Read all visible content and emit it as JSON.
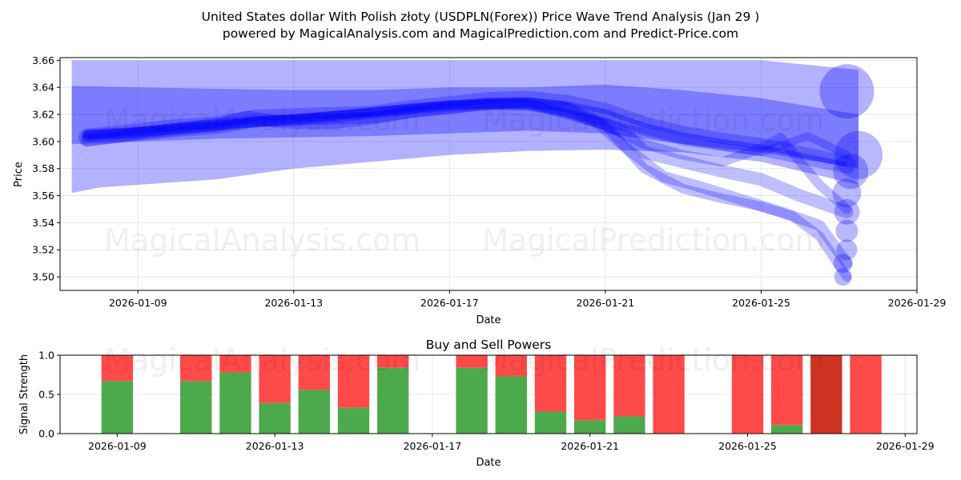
{
  "title": {
    "line1": "United States dollar With Polish złoty (USDPLN(Forex)) Price Wave Trend Analysis (Jan 29 )",
    "line2": "powered by MagicalAnalysis.com and MagicalPrediction.com and Predict-Price.com"
  },
  "watermarks": {
    "left": "MagicalAnalysis.com",
    "right": "MagicalPrediction.com"
  },
  "chart_data": [
    {
      "type": "area",
      "title": "",
      "xlabel": "Date",
      "ylabel": "Price",
      "ylim": [
        3.49,
        3.662
      ],
      "yticks": [
        "3.50",
        "3.52",
        "3.54",
        "3.56",
        "3.58",
        "3.60",
        "3.62",
        "3.64",
        "3.66"
      ],
      "ytick_values": [
        3.5,
        3.52,
        3.54,
        3.56,
        3.58,
        3.6,
        3.62,
        3.64,
        3.66
      ],
      "xlim_days": [
        -2.0,
        20.0
      ],
      "xticks": [
        "2026-01-09",
        "2026-01-13",
        "2026-01-17",
        "2026-01-21",
        "2026-01-25",
        "2026-01-29"
      ],
      "xtick_days": [
        0,
        4,
        8,
        12,
        16,
        20
      ],
      "grid": true,
      "color": "#0000ff",
      "envelopes": [
        {
          "x": [
            -1.7,
            -1,
            0,
            2,
            4,
            6,
            8,
            10,
            12,
            14,
            16,
            18.5
          ],
          "upper": [
            3.66,
            3.66,
            3.66,
            3.66,
            3.66,
            3.66,
            3.66,
            3.66,
            3.66,
            3.66,
            3.66,
            3.653
          ],
          "lower": [
            3.562,
            3.566,
            3.568,
            3.572,
            3.58,
            3.585,
            3.59,
            3.593,
            3.594,
            3.592,
            3.585,
            3.568
          ]
        },
        {
          "x": [
            -1.7,
            0,
            2,
            4,
            6,
            8,
            10,
            12,
            14,
            16,
            18.5
          ],
          "upper": [
            3.641,
            3.64,
            3.639,
            3.638,
            3.638,
            3.64,
            3.64,
            3.642,
            3.638,
            3.632,
            3.62
          ],
          "lower": [
            3.598,
            3.6,
            3.602,
            3.603,
            3.604,
            3.606,
            3.608,
            3.606,
            3.598,
            3.592,
            3.58
          ]
        }
      ],
      "wave_paths": [
        {
          "x": [
            -1.3,
            0,
            1,
            2,
            3,
            4,
            5,
            6,
            7,
            8,
            9,
            10,
            11,
            12,
            13,
            14,
            15,
            16,
            17,
            18.2
          ],
          "y": [
            3.603,
            3.607,
            3.61,
            3.612,
            3.617,
            3.618,
            3.619,
            3.62,
            3.624,
            3.627,
            3.63,
            3.631,
            3.628,
            3.622,
            3.612,
            3.605,
            3.6,
            3.596,
            3.59,
            3.583
          ]
        },
        {
          "x": [
            -1.3,
            0,
            1,
            2,
            2.8,
            3.5,
            4,
            5,
            6,
            7,
            8,
            9,
            10,
            11,
            11.5,
            12,
            12.5,
            13,
            14,
            15,
            16,
            17,
            18.2
          ],
          "y": [
            3.601,
            3.606,
            3.609,
            3.612,
            3.618,
            3.615,
            3.614,
            3.614,
            3.617,
            3.622,
            3.625,
            3.628,
            3.628,
            3.624,
            3.618,
            3.613,
            3.607,
            3.592,
            3.585,
            3.578,
            3.572,
            3.56,
            3.548
          ]
        },
        {
          "x": [
            -1.3,
            0,
            1,
            2,
            3,
            4,
            5,
            6,
            7,
            8,
            9,
            10,
            11,
            11.8,
            12.5,
            13.5,
            14.5,
            15.5,
            16.5,
            17.5,
            18.2
          ],
          "y": [
            3.604,
            3.606,
            3.61,
            3.613,
            3.615,
            3.616,
            3.618,
            3.621,
            3.624,
            3.626,
            3.628,
            3.627,
            3.622,
            3.614,
            3.596,
            3.574,
            3.566,
            3.557,
            3.548,
            3.538,
            3.51
          ]
        },
        {
          "x": [
            -1.3,
            0,
            2,
            4,
            6,
            8,
            10,
            11,
            12,
            13,
            14,
            15,
            16,
            16.8,
            17.5,
            18.2
          ],
          "y": [
            3.605,
            3.607,
            3.611,
            3.617,
            3.621,
            3.627,
            3.629,
            3.626,
            3.612,
            3.58,
            3.565,
            3.558,
            3.552,
            3.545,
            3.53,
            3.5
          ]
        },
        {
          "x": [
            -1.3,
            0,
            2,
            4,
            6,
            8,
            10,
            12,
            13,
            14,
            15,
            16,
            16.5,
            17,
            17.5,
            18.2
          ],
          "y": [
            3.604,
            3.607,
            3.612,
            3.616,
            3.622,
            3.627,
            3.628,
            3.612,
            3.598,
            3.59,
            3.585,
            3.595,
            3.603,
            3.585,
            3.568,
            3.55
          ]
        },
        {
          "x": [
            -1.3,
            0,
            2,
            4,
            6,
            8,
            10,
            12,
            14,
            16,
            17.2,
            18.2
          ],
          "y": [
            3.606,
            3.608,
            3.613,
            3.617,
            3.622,
            3.627,
            3.628,
            3.614,
            3.6,
            3.592,
            3.604,
            3.59
          ]
        }
      ],
      "markers": [
        {
          "x": 18.2,
          "y": 3.637
        },
        {
          "x": 18.5,
          "y": 3.59
        },
        {
          "x": 18.3,
          "y": 3.578
        },
        {
          "x": 18.2,
          "y": 3.562
        },
        {
          "x": 18.2,
          "y": 3.548
        },
        {
          "x": 18.2,
          "y": 3.534
        },
        {
          "x": 18.2,
          "y": 3.52
        },
        {
          "x": 18.1,
          "y": 3.51
        },
        {
          "x": 18.1,
          "y": 3.5
        }
      ]
    },
    {
      "type": "bar",
      "title": "Buy and Sell Powers",
      "xlabel": "Date",
      "ylabel": "Signal Strength",
      "ylim": [
        0,
        1.0
      ],
      "yticks": [
        "0.0",
        "0.5",
        "1.0"
      ],
      "ytick_values": [
        0,
        0.5,
        1.0
      ],
      "xlim_days": [
        -1.45,
        20.3
      ],
      "xticks": [
        "2026-01-09",
        "2026-01-13",
        "2026-01-17",
        "2026-01-21",
        "2026-01-25",
        "2026-01-29"
      ],
      "xtick_days": [
        0,
        4,
        8,
        12,
        16,
        20
      ],
      "grid": true,
      "colors": {
        "buy": "#4caa4c",
        "sell": "#ff4a4a",
        "strong_sell": "#cc3322"
      },
      "bars": [
        {
          "date": "2026-01-09",
          "buy": 0.67,
          "sell": 0.33
        },
        {
          "date": "2026-01-11",
          "buy": 0.67,
          "sell": 0.33
        },
        {
          "date": "2026-01-12",
          "buy": 0.78,
          "sell": 0.22
        },
        {
          "date": "2026-01-13",
          "buy": 0.39,
          "sell": 0.61
        },
        {
          "date": "2026-01-14",
          "buy": 0.56,
          "sell": 0.44
        },
        {
          "date": "2026-01-15",
          "buy": 0.33,
          "sell": 0.67
        },
        {
          "date": "2026-01-16",
          "buy": 0.84,
          "sell": 0.16
        },
        {
          "date": "2026-01-18",
          "buy": 0.84,
          "sell": 0.16
        },
        {
          "date": "2026-01-19",
          "buy": 0.73,
          "sell": 0.27
        },
        {
          "date": "2026-01-20",
          "buy": 0.28,
          "sell": 0.72
        },
        {
          "date": "2026-01-21",
          "buy": 0.17,
          "sell": 0.83
        },
        {
          "date": "2026-01-22",
          "buy": 0.22,
          "sell": 0.78
        },
        {
          "date": "2026-01-23",
          "buy": 0.0,
          "sell": 1.0
        },
        {
          "date": "2026-01-25",
          "buy": 0.0,
          "sell": 1.0
        },
        {
          "date": "2026-01-26",
          "buy": 0.11,
          "sell": 0.89
        },
        {
          "date": "2026-01-27",
          "buy": 0.0,
          "sell": 1.0,
          "strong": true
        },
        {
          "date": "2026-01-28",
          "buy": 0.0,
          "sell": 1.0
        }
      ]
    }
  ]
}
